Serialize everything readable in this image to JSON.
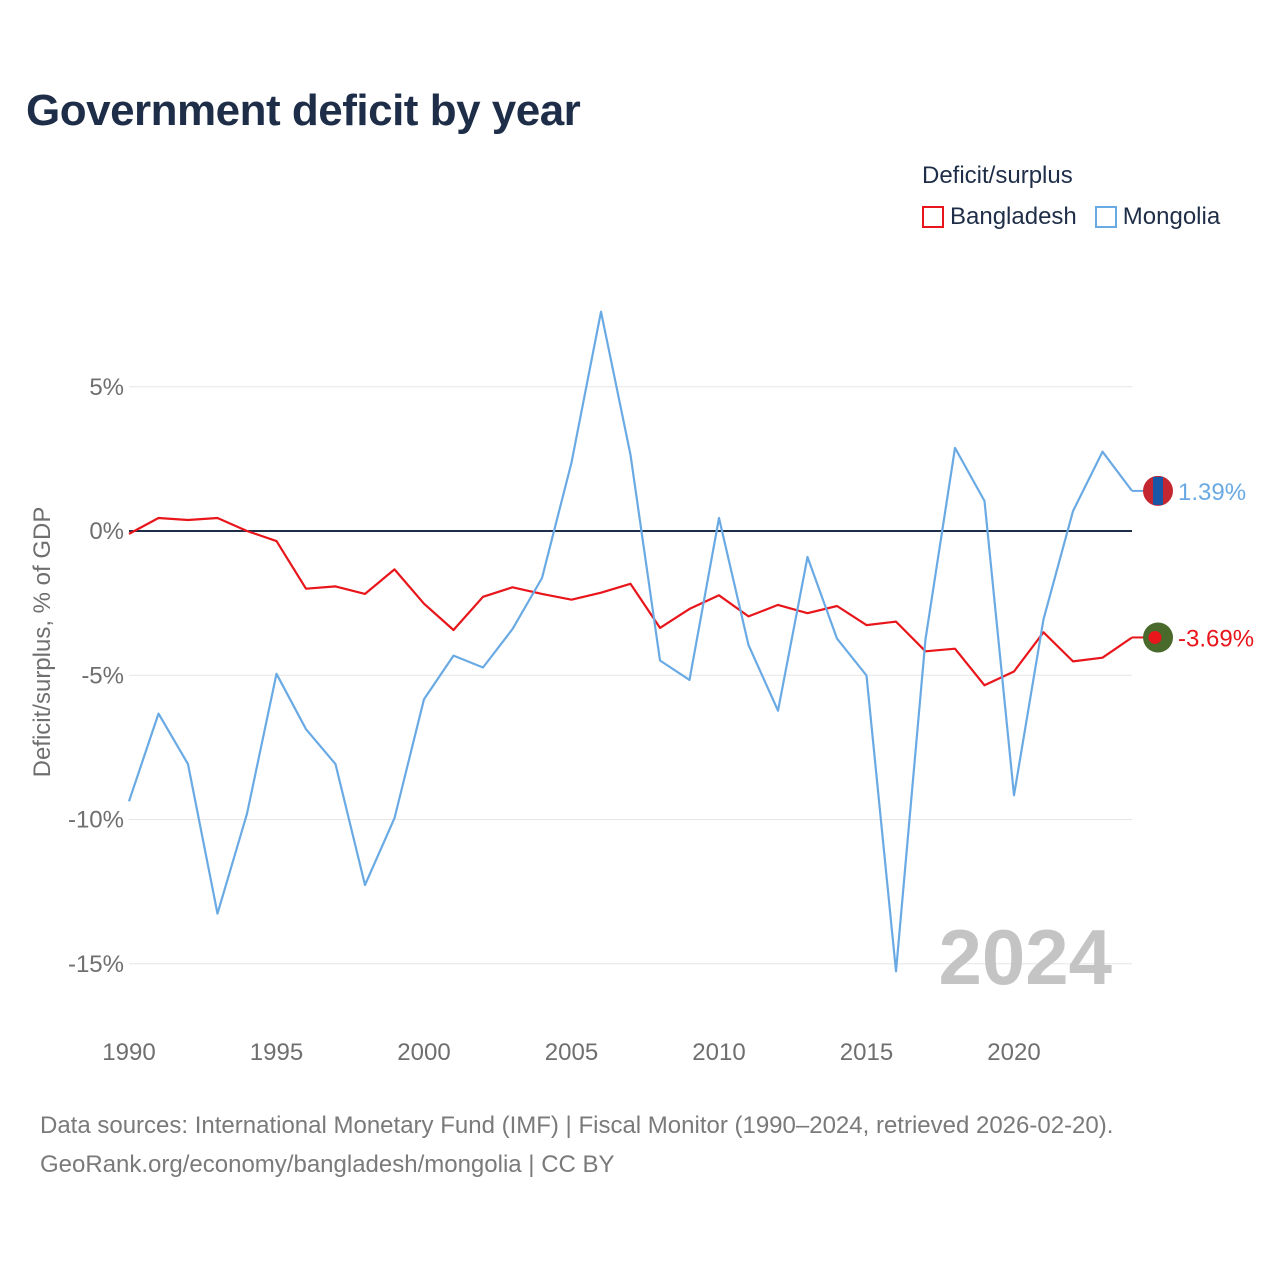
{
  "chart_data": {
    "type": "line",
    "title": "Government deficit by year",
    "ylabel": "Deficit/surplus, % of GDP",
    "xlabel": "",
    "xlim": [
      1990,
      2024
    ],
    "ylim": [
      -16.5,
      8.5
    ],
    "yticks": [
      5,
      0,
      -5,
      -10,
      -15
    ],
    "ytick_labels": [
      "5%",
      "0%",
      "-5%",
      "-10%",
      "-15%"
    ],
    "xticks": [
      1990,
      1995,
      2000,
      2005,
      2010,
      2015,
      2020
    ],
    "xtick_labels": [
      "1990",
      "1995",
      "2000",
      "2005",
      "2010",
      "2015",
      "2020"
    ],
    "legend_title": "Deficit/surplus",
    "legend_position": "top-right",
    "watermark_year": "2024",
    "x": [
      1990,
      1991,
      1992,
      1993,
      1994,
      1995,
      1996,
      1997,
      1998,
      1999,
      2000,
      2001,
      2002,
      2003,
      2004,
      2005,
      2006,
      2007,
      2008,
      2009,
      2010,
      2011,
      2012,
      2013,
      2014,
      2015,
      2016,
      2017,
      2018,
      2019,
      2020,
      2021,
      2022,
      2023,
      2024
    ],
    "series": [
      {
        "name": "Bangladesh",
        "color": "#e8151b",
        "end_label": "-3.69%",
        "flag_colors": [
          "#4a6a2c",
          "#e8151b"
        ],
        "values": [
          -0.1,
          0.45,
          0.38,
          0.45,
          0.0,
          -0.35,
          -2.0,
          -1.92,
          -2.18,
          -1.33,
          -2.52,
          -3.43,
          -2.28,
          -1.95,
          -2.18,
          -2.38,
          -2.14,
          -1.83,
          -3.36,
          -2.7,
          -2.23,
          -2.96,
          -2.56,
          -2.85,
          -2.6,
          -3.26,
          -3.14,
          -4.17,
          -4.08,
          -5.35,
          -4.87,
          -3.51,
          -4.52,
          -4.39,
          -3.69
        ]
      },
      {
        "name": "Mongolia",
        "color": "#6aaae4",
        "end_label": "1.39%",
        "flag_colors": [
          "#c4272f",
          "#1a56a6"
        ],
        "values": [
          -9.37,
          -6.33,
          -8.08,
          -13.26,
          -9.8,
          -4.95,
          -6.87,
          -8.08,
          -12.27,
          -9.95,
          -5.83,
          -4.32,
          -4.73,
          -3.4,
          -1.63,
          2.37,
          7.6,
          2.64,
          -4.49,
          -5.16,
          0.45,
          -3.95,
          -6.23,
          -0.9,
          -3.73,
          -5.01,
          -15.26,
          -3.75,
          2.88,
          1.04,
          -9.16,
          -3.06,
          0.69,
          2.75,
          1.39
        ]
      }
    ]
  },
  "footer": {
    "line1": "Data sources: International Monetary Fund (IMF) | Fiscal Monitor (1990–2024, retrieved 2026-02-20).",
    "line2": "GeoRank.org/economy/bangladesh/mongolia | CC BY"
  }
}
